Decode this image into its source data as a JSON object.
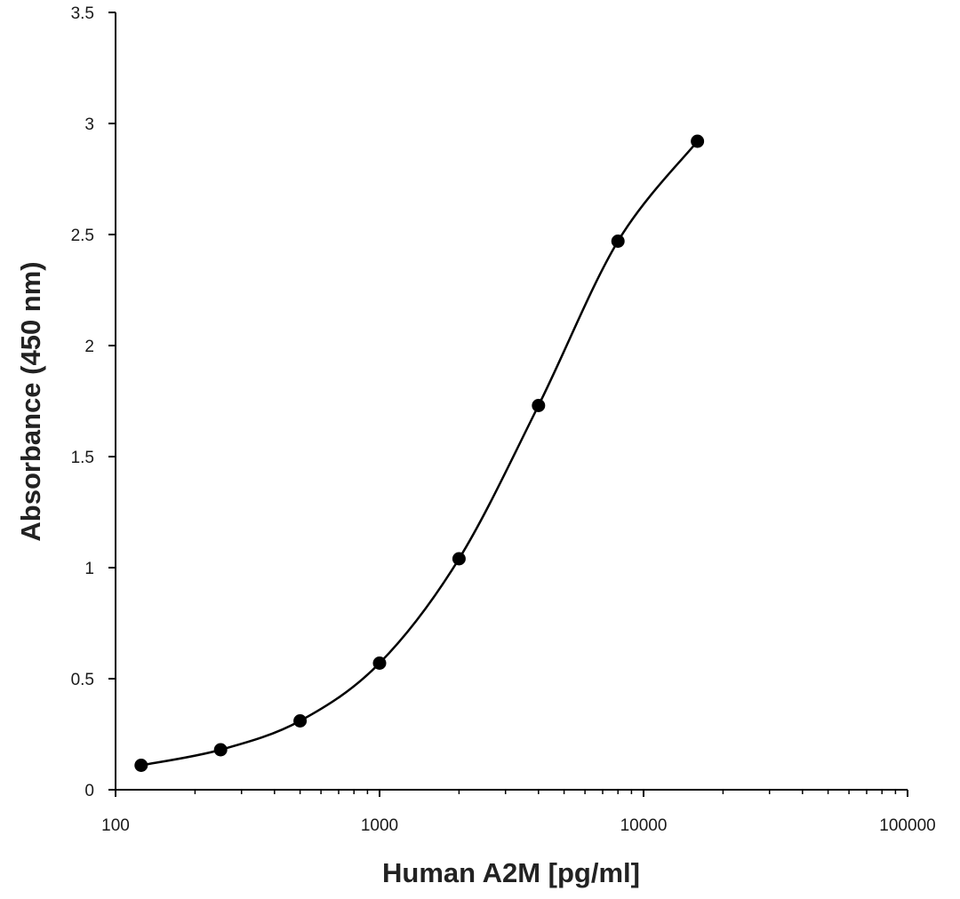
{
  "chart_data": {
    "type": "scatter",
    "title": "",
    "xlabel": "Human A2M [pg/ml]",
    "ylabel": "Absorbance (450 nm)",
    "x_scale": "log",
    "xlim": [
      100,
      100000
    ],
    "ylim": [
      0,
      3.5
    ],
    "x_ticks": [
      100,
      1000,
      10000,
      100000
    ],
    "x_tick_labels": [
      "100",
      "1000",
      "10000",
      "100000"
    ],
    "y_ticks": [
      0,
      0.5,
      1,
      1.5,
      2,
      2.5,
      3,
      3.5
    ],
    "y_tick_labels": [
      "0",
      "0.5",
      "1",
      "1.5",
      "2",
      "2.5",
      "3",
      "3.5"
    ],
    "grid": false,
    "legend": "none",
    "smooth_line": true,
    "series": [
      {
        "x": [
          125,
          250,
          500,
          1000,
          2000,
          4000,
          8000,
          16000
        ],
        "y": [
          0.11,
          0.18,
          0.31,
          0.57,
          1.04,
          1.73,
          2.47,
          2.92
        ]
      }
    ],
    "colors": {
      "line": "#000000",
      "marker": "#000000",
      "axis": "#000000"
    }
  }
}
